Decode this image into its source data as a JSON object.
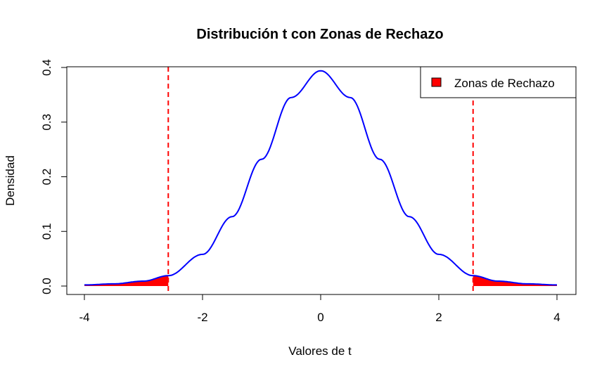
{
  "chart_data": {
    "type": "line",
    "title": "Distribución t con Zonas de Rechazo",
    "xlabel": "Valores de t",
    "ylabel": "Densidad",
    "xlim": [
      -4,
      4
    ],
    "ylim": [
      0,
      0.4
    ],
    "x_ticks": [
      -4,
      -2,
      0,
      2,
      4
    ],
    "y_ticks": [
      0.0,
      0.1,
      0.2,
      0.3,
      0.4
    ],
    "x_tick_labels": [
      "-4",
      "-2",
      "0",
      "2",
      "4"
    ],
    "y_tick_labels": [
      "0.0",
      "0.1",
      "0.2",
      "0.3",
      "0.4"
    ],
    "series": [
      {
        "color": "#0000ff",
        "x": [
          -4.0,
          -3.5,
          -3.0,
          -2.58,
          -2.0,
          -1.5,
          -1.0,
          -0.5,
          0.0,
          0.5,
          1.0,
          1.5,
          2.0,
          2.58,
          3.0,
          3.5,
          4.0
        ],
        "y": [
          0.002,
          0.004,
          0.009,
          0.019,
          0.058,
          0.127,
          0.232,
          0.345,
          0.394,
          0.345,
          0.232,
          0.127,
          0.058,
          0.019,
          0.009,
          0.004,
          0.002
        ]
      }
    ],
    "critical_values": [
      -2.58,
      2.58
    ],
    "critical_line_color": "#ff0000",
    "rejection_zone_color": "#ff0000",
    "legend": {
      "position": "top-right",
      "entries": [
        {
          "label": "Zonas de Rechazo",
          "color": "#ff0000"
        }
      ]
    },
    "grid": false
  }
}
